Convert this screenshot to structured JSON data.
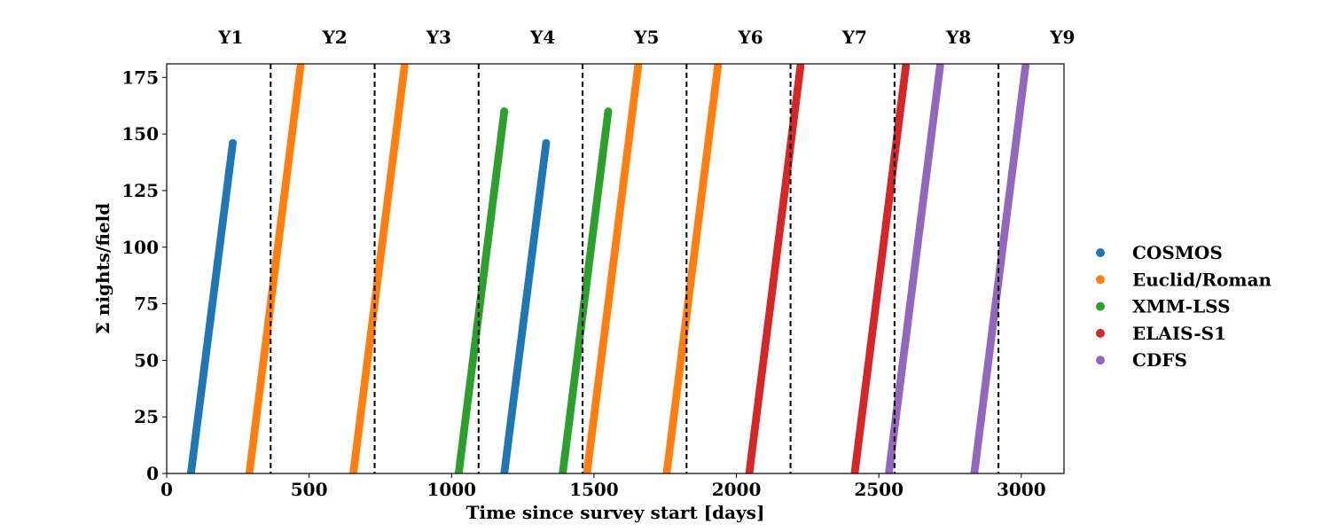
{
  "chart_data": {
    "type": "scatter",
    "xlabel": "Time since survey start [days]",
    "ylabel": "Σ nights/field",
    "xlim": [
      0,
      3150
    ],
    "ylim": [
      0,
      181
    ],
    "x_ticks": [
      0,
      500,
      1000,
      1500,
      2000,
      2500,
      3000
    ],
    "y_ticks": [
      0,
      25,
      50,
      75,
      100,
      125,
      150,
      175
    ],
    "grid": false,
    "legend_position": "right, outside",
    "year_labels": [
      "Y1",
      "Y2",
      "Y3",
      "Y4",
      "Y5",
      "Y6",
      "Y7",
      "Y8",
      "Y9"
    ],
    "year_label_x": [
      225,
      590,
      955,
      1320,
      1685,
      2050,
      2415,
      2780,
      3145
    ],
    "year_boundaries": [
      365,
      730,
      1095,
      1460,
      1825,
      2190,
      2555,
      2920
    ],
    "series": [
      {
        "name": "COSMOS",
        "color": "#1f77b4",
        "segments": [
          {
            "x": [
              85,
              232
            ],
            "y": [
              0,
              146
            ]
          },
          {
            "x": [
              1185,
              1332
            ],
            "y": [
              0,
              146
            ]
          }
        ]
      },
      {
        "name": "Euclid/Roman",
        "color": "#ff7f0e",
        "segments": [
          {
            "x": [
              290,
              470
            ],
            "y": [
              0,
              180
            ]
          },
          {
            "x": [
              655,
              835
            ],
            "y": [
              0,
              180
            ]
          },
          {
            "x": [
              1475,
              1655
            ],
            "y": [
              0,
              180
            ]
          },
          {
            "x": [
              1755,
              1935
            ],
            "y": [
              0,
              180
            ]
          }
        ]
      },
      {
        "name": "XMM-LSS",
        "color": "#2ca02c",
        "segments": [
          {
            "x": [
              1025,
              1185
            ],
            "y": [
              0,
              160
            ]
          },
          {
            "x": [
              1390,
              1550
            ],
            "y": [
              0,
              160
            ]
          }
        ]
      },
      {
        "name": "ELAIS-S1",
        "color": "#d62728",
        "segments": [
          {
            "x": [
              2045,
              2225
            ],
            "y": [
              0,
              180
            ]
          },
          {
            "x": [
              2415,
              2595
            ],
            "y": [
              0,
              180
            ]
          }
        ]
      },
      {
        "name": "CDFS",
        "color": "#9467bd",
        "segments": [
          {
            "x": [
              2535,
              2715
            ],
            "y": [
              0,
              180
            ]
          },
          {
            "x": [
              2835,
              3015
            ],
            "y": [
              0,
              180
            ]
          }
        ]
      }
    ]
  }
}
